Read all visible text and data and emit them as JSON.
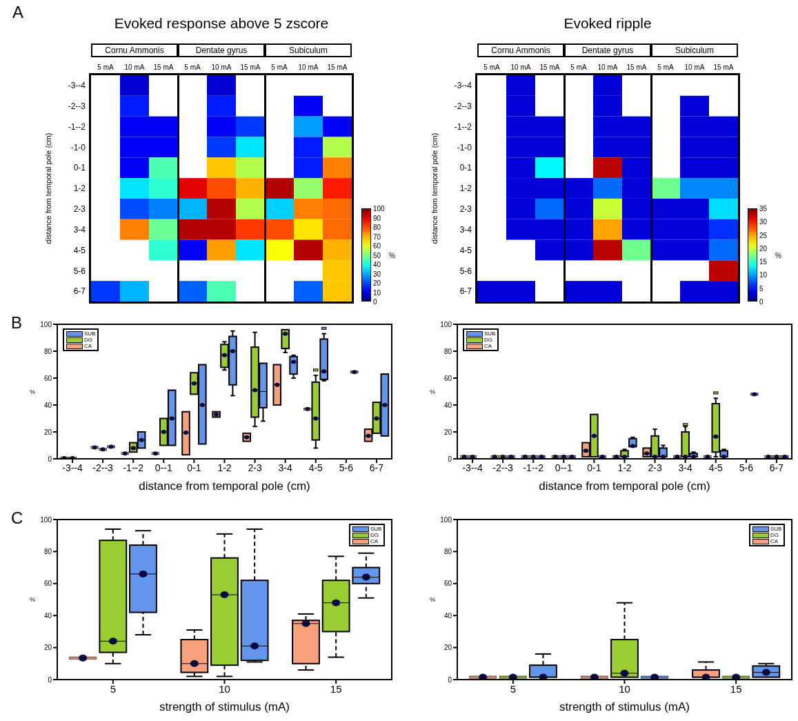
{
  "chart_data": [
    {
      "type": "heatmap",
      "title": "Evoked response above 5 zscore",
      "ylabel": "distance from temporal pole (cm)",
      "clabel": "%",
      "annotations": [
        "A",
        "Cornu Ammonis",
        "Dentate gyrus",
        "Subiculum"
      ],
      "categories": [
        "5 mA",
        "10 mA",
        "15 mA",
        "5 mA",
        "10 mA",
        "15 mA",
        "5 mA",
        "10 mA",
        "15 mA"
      ],
      "y_categories": [
        "-3--4",
        "-2--3",
        "-1--2",
        "-1-0",
        "0-1",
        "1-2",
        "2-3",
        "3-4",
        "4-5",
        "5-6",
        "6-7"
      ],
      "cells": [
        [
          null,
          8,
          null,
          null,
          8,
          null,
          null,
          null,
          null
        ],
        [
          null,
          15,
          null,
          null,
          15,
          null,
          null,
          12,
          null
        ],
        [
          null,
          12,
          12,
          null,
          12,
          18,
          null,
          28,
          12
        ],
        [
          null,
          12,
          12,
          null,
          18,
          35,
          null,
          15,
          55
        ],
        [
          null,
          12,
          45,
          null,
          68,
          55,
          null,
          15,
          75
        ],
        [
          null,
          35,
          42,
          90,
          80,
          70,
          95,
          52,
          85
        ],
        [
          null,
          20,
          25,
          30,
          95,
          55,
          33,
          75,
          77
        ],
        [
          null,
          75,
          48,
          95,
          95,
          82,
          80,
          65,
          77
        ],
        [
          null,
          null,
          42,
          12,
          72,
          35,
          62,
          95,
          70
        ],
        [
          null,
          null,
          null,
          null,
          null,
          null,
          null,
          null,
          68
        ],
        [
          18,
          30,
          null,
          22,
          45,
          null,
          null,
          22,
          68
        ]
      ],
      "clim": [
        0,
        100
      ],
      "cticks": [
        0,
        10,
        20,
        30,
        40,
        50,
        60,
        70,
        80,
        90,
        100
      ]
    },
    {
      "type": "heatmap",
      "title": "Evoked ripple",
      "ylabel": "distance from temporal pole (cm)",
      "clabel": "%",
      "annotations": [
        "Cornu Ammonis",
        "Dentate gyrus",
        "Subiculum"
      ],
      "categories": [
        "5 mA",
        "10 mA",
        "15 mA",
        "5 mA",
        "10 mA",
        "15 mA",
        "5 mA",
        "10 mA",
        "15 mA"
      ],
      "y_categories": [
        "-3--4",
        "-2--3",
        "-1--2",
        "-1-0",
        "0-1",
        "1-2",
        "2-3",
        "3-4",
        "4-5",
        "5-6",
        "6-7"
      ],
      "cells": [
        [
          null,
          3,
          null,
          null,
          3,
          null,
          null,
          null,
          null
        ],
        [
          null,
          3,
          null,
          null,
          3,
          null,
          null,
          3,
          null
        ],
        [
          null,
          3,
          3,
          null,
          3,
          3,
          null,
          3,
          3
        ],
        [
          null,
          3,
          3,
          null,
          3,
          3,
          null,
          3,
          3
        ],
        [
          null,
          3,
          13,
          null,
          33,
          3,
          null,
          3,
          3
        ],
        [
          null,
          3,
          3,
          3,
          8,
          3,
          17,
          9,
          9
        ],
        [
          null,
          3,
          8,
          3,
          20,
          3,
          3,
          3,
          12
        ],
        [
          null,
          3,
          3,
          3,
          25,
          3,
          3,
          3,
          6
        ],
        [
          null,
          null,
          3,
          3,
          33,
          17,
          3,
          3,
          8
        ],
        [
          null,
          null,
          null,
          null,
          null,
          null,
          null,
          null,
          33
        ],
        [
          3,
          3,
          null,
          3,
          3,
          null,
          null,
          3,
          3
        ]
      ],
      "clim": [
        0,
        35
      ],
      "cticks": [
        0,
        5,
        10,
        15,
        20,
        25,
        30,
        35
      ]
    },
    {
      "type": "box",
      "xlabel": "distance from temporal pole (cm)",
      "ylabel": "%",
      "annotations": [
        "B"
      ],
      "legend": "top left",
      "ylim": [
        0,
        100
      ],
      "yticks": [
        0,
        20,
        40,
        60,
        80,
        100
      ],
      "categories": [
        "-3--4",
        "-2--3",
        "-1--2",
        "0--1",
        "0-1",
        "1-2",
        "2-3",
        "3-4",
        "4-5",
        "5-6",
        "6-7"
      ],
      "series": [
        {
          "name": "CA",
          "color": "#f9a07c",
          "boxes": [
            {
              "low": 0.5,
              "q1": 0.5,
              "median": 0.5,
              "q3": 0.5,
              "high": 0.5,
              "mean": 0.5
            },
            {
              "low": 8.5,
              "q1": 8.5,
              "median": 8.5,
              "q3": 8.5,
              "high": 8.5,
              "mean": 8.5
            },
            {
              "low": 4,
              "q1": 4,
              "median": 4,
              "q3": 4,
              "high": 4,
              "mean": 4
            },
            {
              "low": 4,
              "q1": 4,
              "median": 4,
              "q3": 4,
              "high": 4,
              "mean": 4
            },
            {
              "low": 3,
              "q1": 3,
              "median": 19.5,
              "q3": 35,
              "high": 35,
              "mean": 19.5
            },
            {
              "low": 31,
              "q1": 31,
              "median": 33,
              "q3": 35,
              "high": 35,
              "mean": 33
            },
            {
              "low": 13,
              "q1": 13,
              "median": 16,
              "q3": 19,
              "high": 19,
              "mean": 16
            },
            {
              "low": 40,
              "q1": 40,
              "median": 55,
              "q3": 70,
              "high": 70,
              "mean": 55
            },
            {
              "low": 37,
              "q1": 37,
              "median": 37,
              "q3": 37,
              "high": 37,
              "mean": 37
            },
            null,
            {
              "low": 13,
              "q1": 13,
              "median": 17,
              "q3": 22,
              "high": 22,
              "mean": 17
            }
          ]
        },
        {
          "name": "DG",
          "color": "#9acd32",
          "boxes": [
            {
              "low": 0.5,
              "q1": 0.5,
              "median": 0.5,
              "q3": 0.5,
              "high": 0.5,
              "mean": 0.5
            },
            {
              "low": 7,
              "q1": 7,
              "median": 7,
              "q3": 7,
              "high": 7,
              "mean": 7
            },
            {
              "low": 5,
              "q1": 5,
              "median": 8,
              "q3": 12,
              "high": 12,
              "mean": 8
            },
            {
              "low": 10,
              "q1": 10,
              "median": 20,
              "q3": 30,
              "high": 30,
              "mean": 20
            },
            {
              "low": 48,
              "q1": 48,
              "median": 56,
              "q3": 64,
              "high": 64,
              "mean": 56
            },
            {
              "low": 66,
              "q1": 68,
              "median": 77,
              "q3": 85,
              "high": 87,
              "mean": 77
            },
            {
              "low": 24,
              "q1": 31,
              "median": 51,
              "q3": 83,
              "high": 94,
              "mean": 51
            },
            {
              "low": 79,
              "q1": 82,
              "median": 93,
              "q3": 96,
              "high": 96,
              "mean": 93
            },
            {
              "low": 8,
              "q1": 14,
              "median": 30,
              "q3": 57,
              "high": 62,
              "mean": 30,
              "outliers": [
                66
              ]
            },
            null,
            {
              "low": 19,
              "q1": 19,
              "median": 30,
              "q3": 42,
              "high": 42,
              "mean": 30
            }
          ]
        },
        {
          "name": "SUB",
          "color": "#6495ed",
          "boxes": [
            null,
            {
              "low": 9,
              "q1": 9,
              "median": 9,
              "q3": 9,
              "high": 9,
              "mean": 9
            },
            {
              "low": 8,
              "q1": 8,
              "median": 14,
              "q3": 20,
              "high": 20,
              "mean": 14
            },
            {
              "low": 10,
              "q1": 10,
              "median": 30,
              "q3": 51,
              "high": 51,
              "mean": 30
            },
            {
              "low": 11,
              "q1": 11,
              "median": 40,
              "q3": 70,
              "high": 70,
              "mean": 40
            },
            {
              "low": 47,
              "q1": 55,
              "median": 80,
              "q3": 91,
              "high": 95,
              "mean": 80
            },
            {
              "low": 28,
              "q1": 38,
              "median": 50,
              "q3": 71,
              "high": 71
            },
            {
              "low": 60,
              "q1": 63,
              "median": 72,
              "q3": 76,
              "high": 77,
              "mean": 72
            },
            {
              "low": 58,
              "q1": 59,
              "median": 65,
              "q3": 89,
              "high": 93,
              "mean": 65,
              "outliers": [
                97
              ]
            },
            {
              "low": 64.5,
              "q1": 64.5,
              "median": 64.5,
              "q3": 64.5,
              "high": 64.5,
              "mean": 64.5
            },
            {
              "low": 17,
              "q1": 17,
              "median": 40,
              "q3": 63,
              "high": 63,
              "mean": 40
            }
          ]
        }
      ]
    },
    {
      "type": "box",
      "xlabel": "distance from temporal pole (cm)",
      "ylabel": "%",
      "legend": "top left",
      "ylim": [
        0,
        100
      ],
      "yticks": [
        0,
        20,
        40,
        60,
        80,
        100
      ],
      "categories": [
        "-3--4",
        "-2--3",
        "-1--2",
        "0--1",
        "0-1",
        "1-2",
        "2-3",
        "3-4",
        "4-5",
        "5-6",
        "6-7"
      ],
      "series": [
        {
          "name": "CA",
          "color": "#f9a07c",
          "boxes": [
            {
              "low": 1.5,
              "q1": 1.5,
              "median": 1.5,
              "q3": 1.5,
              "high": 1.5,
              "mean": 1.5
            },
            {
              "low": 1.5,
              "q1": 1.5,
              "median": 1.5,
              "q3": 1.5,
              "high": 1.5,
              "mean": 1.5
            },
            {
              "low": 1.5,
              "q1": 1.5,
              "median": 1.5,
              "q3": 1.5,
              "high": 1.5,
              "mean": 1.5
            },
            {
              "low": 1.5,
              "q1": 1.5,
              "median": 1.5,
              "q3": 1.5,
              "high": 1.5,
              "mean": 1.5
            },
            {
              "low": 1.5,
              "q1": 1.5,
              "median": 6,
              "q3": 12,
              "high": 12,
              "mean": 6
            },
            {
              "low": 1.5,
              "q1": 1.5,
              "median": 1.5,
              "q3": 1.5,
              "high": 1.5,
              "mean": 1.5
            },
            {
              "low": 1.5,
              "q1": 1.5,
              "median": 4,
              "q3": 8,
              "high": 8,
              "mean": 4
            },
            {
              "low": 1.5,
              "q1": 1.5,
              "median": 1.5,
              "q3": 1.5,
              "high": 1.5,
              "mean": 1.5
            },
            {
              "low": 1.5,
              "q1": 1.5,
              "median": 1.5,
              "q3": 1.5,
              "high": 1.5,
              "mean": 1.5
            },
            null,
            {
              "low": 1.5,
              "q1": 1.5,
              "median": 1.5,
              "q3": 1.5,
              "high": 1.5,
              "mean": 1.5
            }
          ]
        },
        {
          "name": "DG",
          "color": "#9acd32",
          "boxes": [
            {
              "low": 1.5,
              "q1": 1.5,
              "median": 1.5,
              "q3": 1.5,
              "high": 1.5,
              "mean": 1.5
            },
            {
              "low": 1.5,
              "q1": 1.5,
              "median": 1.5,
              "q3": 1.5,
              "high": 1.5,
              "mean": 1.5
            },
            {
              "low": 1.5,
              "q1": 1.5,
              "median": 1.5,
              "q3": 1.5,
              "high": 1.5,
              "mean": 1.5
            },
            {
              "low": 1.5,
              "q1": 1.5,
              "median": 1.5,
              "q3": 1.5,
              "high": 1.5,
              "mean": 1.5
            },
            {
              "low": 1.5,
              "q1": 1.5,
              "median": 17,
              "q3": 33,
              "high": 33,
              "mean": 17
            },
            {
              "low": 1.5,
              "q1": 1.5,
              "median": 1.5,
              "q3": 6,
              "high": 7,
              "mean": 1.5
            },
            {
              "low": 1.5,
              "q1": 1.5,
              "median": 1.5,
              "q3": 17,
              "high": 22,
              "mean": 1.5
            },
            {
              "low": 1.5,
              "q1": 1.5,
              "median": 1.5,
              "q3": 20,
              "high": 24,
              "mean": 1.5,
              "outliers": [
                25.5
              ]
            },
            {
              "low": 1.5,
              "q1": 5,
              "median": 16.5,
              "q3": 41,
              "high": 45,
              "mean": 16.5,
              "outliers": [
                49
              ]
            },
            null,
            {
              "low": 1.5,
              "q1": 1.5,
              "median": 1.5,
              "q3": 1.5,
              "high": 1.5,
              "mean": 1.5
            }
          ]
        },
        {
          "name": "SUB",
          "color": "#6495ed",
          "boxes": [
            null,
            {
              "low": 1.5,
              "q1": 1.5,
              "median": 1.5,
              "q3": 1.5,
              "high": 1.5,
              "mean": 1.5
            },
            {
              "low": 1.5,
              "q1": 1.5,
              "median": 1.5,
              "q3": 1.5,
              "high": 1.5,
              "mean": 1.5
            },
            {
              "low": 1.5,
              "q1": 1.5,
              "median": 1.5,
              "q3": 1.5,
              "high": 1.5,
              "mean": 1.5
            },
            {
              "low": 1.5,
              "q1": 1.5,
              "median": 1.5,
              "q3": 1.5,
              "high": 1.5,
              "mean": 1.5
            },
            {
              "low": 9,
              "q1": 9,
              "median": 9.5,
              "q3": 15,
              "high": 16,
              "mean": 9.5
            },
            {
              "low": 1.5,
              "q1": 1.5,
              "median": 1.5,
              "q3": 8,
              "high": 10,
              "mean": 1.5
            },
            {
              "low": 1.5,
              "q1": 1.5,
              "median": 1.5,
              "q3": 4,
              "high": 5,
              "mean": 1.5
            },
            {
              "low": 1.5,
              "q1": 1.5,
              "median": 1.5,
              "q3": 6,
              "high": 7,
              "mean": 1.5
            },
            {
              "low": 48,
              "q1": 48,
              "median": 48,
              "q3": 48,
              "high": 48,
              "mean": 48
            },
            {
              "low": 1.5,
              "q1": 1.5,
              "median": 1.5,
              "q3": 1.5,
              "high": 1.5,
              "mean": 1.5
            }
          ]
        }
      ]
    },
    {
      "type": "box",
      "xlabel": "strength of stimulus (mA)",
      "ylabel": "%",
      "annotations": [
        "C"
      ],
      "legend": "top right",
      "line_style": "dashed",
      "ylim": [
        0,
        100
      ],
      "yticks": [
        0,
        20,
        40,
        60,
        80,
        100
      ],
      "categories": [
        "5",
        "10",
        "15"
      ],
      "series": [
        {
          "name": "CA",
          "color": "#f9a07c",
          "boxes": [
            {
              "low": 13.5,
              "q1": 13.5,
              "median": 13.5,
              "q3": 13.5,
              "high": 13.5,
              "mean": 13.5
            },
            {
              "low": 2,
              "q1": 4.5,
              "median": 10,
              "q3": 25,
              "high": 31,
              "mean": 10
            },
            {
              "low": 6,
              "q1": 10,
              "median": 35,
              "q3": 37,
              "high": 41,
              "mean": 35
            }
          ]
        },
        {
          "name": "DG",
          "color": "#9acd32",
          "boxes": [
            {
              "low": 10,
              "q1": 17,
              "median": 24,
              "q3": 87,
              "high": 94,
              "mean": 24
            },
            {
              "low": 2,
              "q1": 9,
              "median": 53,
              "q3": 76,
              "high": 91,
              "mean": 53
            },
            {
              "low": 14,
              "q1": 30,
              "median": 48,
              "q3": 62,
              "high": 77,
              "mean": 48
            }
          ]
        },
        {
          "name": "SUB",
          "color": "#6495ed",
          "boxes": [
            {
              "low": 28,
              "q1": 42,
              "median": 66,
              "q3": 84,
              "high": 93,
              "mean": 66
            },
            {
              "low": 11,
              "q1": 12,
              "median": 21,
              "q3": 62,
              "high": 94,
              "mean": 21
            },
            {
              "low": 51,
              "q1": 60,
              "median": 64,
              "q3": 70,
              "high": 79,
              "mean": 64
            }
          ]
        }
      ]
    },
    {
      "type": "box",
      "xlabel": "strength of stimulus (mA)",
      "ylabel": "%",
      "legend": "top right",
      "line_style": "dashed",
      "ylim": [
        0,
        100
      ],
      "yticks": [
        0,
        20,
        40,
        60,
        80,
        100
      ],
      "categories": [
        "5",
        "10",
        "15"
      ],
      "series": [
        {
          "name": "CA",
          "color": "#f9a07c",
          "boxes": [
            {
              "low": 1.5,
              "q1": 1.5,
              "median": 1.5,
              "q3": 1.5,
              "high": 1.5,
              "mean": 1.5
            },
            {
              "low": 1.5,
              "q1": 1.5,
              "median": 1.5,
              "q3": 1.5,
              "high": 1.5,
              "mean": 1.5
            },
            {
              "low": 1.5,
              "q1": 1.5,
              "median": 1.5,
              "q3": 6,
              "high": 11,
              "mean": 1.5
            }
          ]
        },
        {
          "name": "DG",
          "color": "#9acd32",
          "boxes": [
            {
              "low": 1.5,
              "q1": 1.5,
              "median": 1.5,
              "q3": 1.5,
              "high": 1.5,
              "mean": 1.5
            },
            {
              "low": 1.5,
              "q1": 1.5,
              "median": 4,
              "q3": 25,
              "high": 48,
              "mean": 4
            },
            {
              "low": 1.5,
              "q1": 1.5,
              "median": 1.5,
              "q3": 1.5,
              "high": 1.5,
              "mean": 1.5
            }
          ]
        },
        {
          "name": "SUB",
          "color": "#6495ed",
          "boxes": [
            {
              "low": 1.5,
              "q1": 1.5,
              "median": 1.5,
              "q3": 9,
              "high": 16,
              "mean": 1.5
            },
            {
              "low": 1.5,
              "q1": 1.5,
              "median": 1.5,
              "q3": 1.5,
              "high": 1.5,
              "mean": 1.5
            },
            {
              "low": 1.5,
              "q1": 1.5,
              "median": 4.5,
              "q3": 8.5,
              "high": 10,
              "mean": 4.5
            }
          ]
        }
      ]
    }
  ]
}
